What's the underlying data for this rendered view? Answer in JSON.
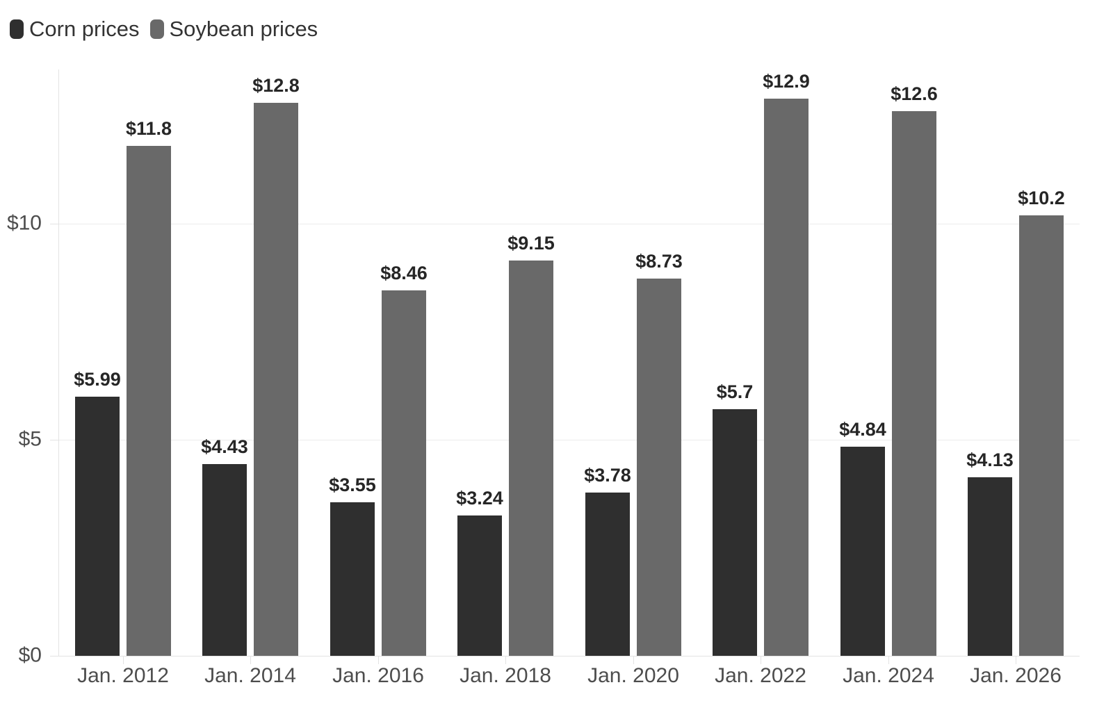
{
  "chart_data": {
    "type": "bar",
    "title": "",
    "xlabel": "",
    "ylabel": "",
    "categories": [
      "Jan. 2012",
      "Jan. 2014",
      "Jan. 2016",
      "Jan. 2018",
      "Jan. 2020",
      "Jan. 2022",
      "Jan. 2024",
      "Jan. 2026"
    ],
    "series": [
      {
        "name": "Corn prices",
        "color": "#2f2f2f",
        "values": [
          5.99,
          4.43,
          3.55,
          3.24,
          3.78,
          5.7,
          4.84,
          4.13
        ],
        "labels": [
          "$5.99",
          "$4.43",
          "$3.55",
          "$3.24",
          "$3.78",
          "$5.7",
          "$4.84",
          "$4.13"
        ]
      },
      {
        "name": "Soybean prices",
        "color": "#696969",
        "values": [
          11.8,
          12.8,
          8.46,
          9.15,
          8.73,
          12.9,
          12.6,
          10.2
        ],
        "labels": [
          "$11.8",
          "$12.8",
          "$8.46",
          "$9.15",
          "$8.73",
          "$12.9",
          "$12.6",
          "$10.2"
        ]
      }
    ],
    "y_ticks": [
      {
        "value": 0,
        "label": "$0"
      },
      {
        "value": 5,
        "label": "$5"
      },
      {
        "value": 10,
        "label": "$10"
      }
    ],
    "ylim": [
      0,
      13.57
    ],
    "grid": true,
    "legend_position": "top-left",
    "colors": {
      "grid": "#ececec",
      "axis": "#e3e3e3",
      "tick_label": "#4d4d4d",
      "value_label": "#262626",
      "legend_text": "#333333",
      "background": "#ffffff"
    }
  }
}
